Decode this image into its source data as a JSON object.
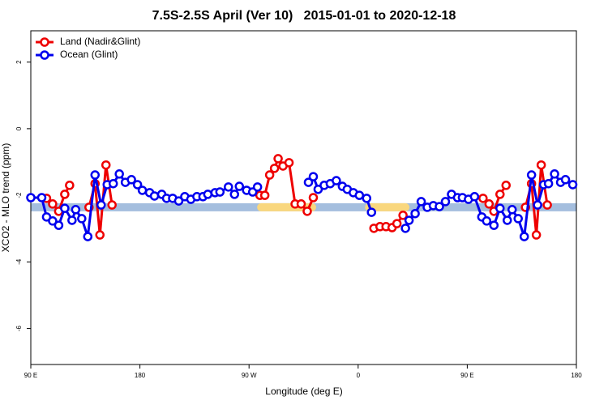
{
  "chart_data": {
    "type": "line",
    "title": "7.5S-2.5S April (Ver 10)   2015-01-01 to 2020-12-18",
    "x_label": "Longitude (deg E)",
    "y_label": "XCO2 - MLO trend (ppm)",
    "xlim": [
      90,
      540
    ],
    "xticks": [
      {
        "value": 90,
        "label": "90 E"
      },
      {
        "value": 180,
        "label": "180"
      },
      {
        "value": 270,
        "label": "90 W"
      },
      {
        "value": 360,
        "label": "0"
      },
      {
        "value": 450,
        "label": "90 E"
      },
      {
        "value": 540,
        "label": "180"
      }
    ],
    "ylim": [
      -7.08,
      2.94
    ],
    "yticks": [
      2,
      0,
      -2,
      -4,
      -6
    ],
    "legend": "top-left",
    "mask": {
      "value": -2.36,
      "color": "#a4bede",
      "x": [
        90,
        540
      ],
      "segments": [
        {
          "x": [
            280,
            322
          ],
          "color": "#f9d77e"
        },
        {
          "x": [
            369,
            399
          ],
          "color": "#f9d77e"
        }
      ]
    },
    "series": [
      {
        "name": "Land (Nadir&Glint)",
        "color": "#ee0000",
        "x": [
          103,
          108,
          113,
          118,
          122,
          null,
          138,
          143,
          147,
          152,
          157,
          null,
          279,
          283,
          287,
          291,
          294,
          298,
          303,
          308,
          313,
          318,
          323,
          null,
          373,
          378,
          383,
          388,
          392,
          397,
          null,
          463,
          468,
          472,
          477,
          482,
          null,
          498,
          503,
          507,
          511,
          516
        ],
        "values": [
          -2.09,
          -2.26,
          -2.48,
          -1.97,
          -1.7,
          null,
          -2.36,
          -1.65,
          -3.19,
          -1.09,
          -2.29,
          null,
          -2.0,
          -2.0,
          -1.39,
          -1.19,
          -0.9,
          -1.12,
          -1.02,
          -2.26,
          -2.26,
          -2.48,
          -2.07,
          null,
          -2.99,
          -2.94,
          -2.94,
          -2.97,
          -2.85,
          -2.6,
          null,
          -2.09,
          -2.26,
          -2.48,
          -1.97,
          -1.7,
          null,
          -2.36,
          -1.65,
          -3.19,
          -1.09,
          -2.29
        ]
      },
      {
        "name": "Ocean (Glint)",
        "color": "#0000ee",
        "x": [
          90,
          99,
          103,
          108,
          113,
          118,
          124,
          127,
          132,
          137,
          143,
          148,
          153,
          158,
          163,
          168,
          173,
          178,
          182,
          188,
          192,
          198,
          202,
          207,
          212,
          217,
          222,
          227,
          232,
          236,
          242,
          246,
          253,
          258,
          262,
          268,
          273,
          277,
          null,
          319,
          323,
          327,
          332,
          337,
          342,
          347,
          351,
          356,
          361,
          367,
          371,
          null,
          399,
          402,
          407,
          412,
          417,
          422,
          427,
          432,
          437,
          442,
          446,
          451,
          456,
          462,
          466,
          472,
          477,
          483,
          487,
          492,
          497,
          503,
          508,
          513,
          517,
          522,
          527,
          531,
          537
        ],
        "values": [
          -2.07,
          -2.07,
          -2.65,
          -2.77,
          -2.9,
          -2.39,
          -2.75,
          -2.43,
          -2.7,
          -3.24,
          -1.39,
          -2.29,
          -1.68,
          -1.65,
          -1.36,
          -1.61,
          -1.53,
          -1.68,
          -1.85,
          -1.92,
          -2.02,
          -1.97,
          -2.09,
          -2.09,
          -2.17,
          -2.04,
          -2.12,
          -2.04,
          -2.04,
          -1.97,
          -1.92,
          -1.9,
          -1.75,
          -1.97,
          -1.73,
          -1.85,
          -1.9,
          -1.75,
          null,
          -1.61,
          -1.44,
          -1.82,
          -1.7,
          -1.65,
          -1.56,
          -1.73,
          -1.82,
          -1.92,
          -2.0,
          -2.09,
          -2.51,
          null,
          -2.99,
          -2.75,
          -2.55,
          -2.19,
          -2.36,
          -2.31,
          -2.34,
          -2.19,
          -1.97,
          -2.07,
          -2.07,
          -2.12,
          -2.04,
          -2.65,
          -2.77,
          -2.9,
          -2.39,
          -2.75,
          -2.43,
          -2.7,
          -3.24,
          -1.39,
          -2.29,
          -1.68,
          -1.65,
          -1.36,
          -1.61,
          -1.53,
          -1.68
        ]
      }
    ]
  }
}
